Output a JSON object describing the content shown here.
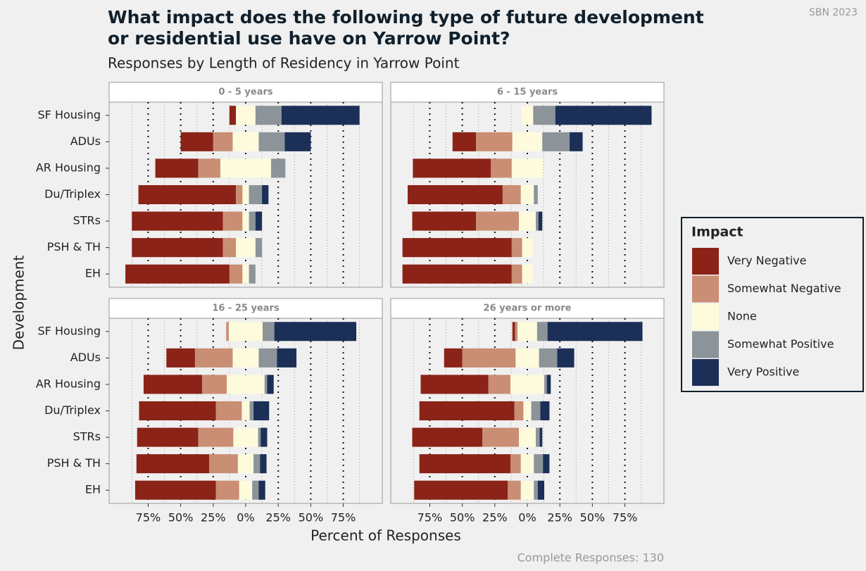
{
  "chart_data": {
    "type": "diverging_bar",
    "title_lines": [
      "What impact does the following type of future development",
      "or residential use have on Yarrow Point?"
    ],
    "subtitle": "Responses by Length of Residency in Yarrow Point",
    "source": "SBN 2023",
    "caption": "Complete Responses: 130",
    "x_label": "Percent of Responses",
    "y_label": "Development",
    "legend_title": "Impact",
    "categories": [
      "SF Housing",
      "ADUs",
      "AR Housing",
      "Du/Triplex",
      "STRs",
      "PSH & TH",
      "EH"
    ],
    "series": [
      {
        "name": "Very Negative",
        "color": "#8b2318"
      },
      {
        "name": "Somewhat Negative",
        "color": "#c98e74"
      },
      {
        "name": "None",
        "color": "#fdfbdc"
      },
      {
        "name": "Somewhat Positive",
        "color": "#8c949a"
      },
      {
        "name": "Very Positive",
        "color": "#1b2f57"
      }
    ],
    "neutral_series": "None",
    "xlim": [
      -105,
      105
    ],
    "xticks": [
      {
        "value": -75,
        "label": "75%"
      },
      {
        "value": -50,
        "label": "50%"
      },
      {
        "value": -25,
        "label": "25%"
      },
      {
        "value": 0,
        "label": "0%"
      },
      {
        "value": 25,
        "label": "25%"
      },
      {
        "value": 50,
        "label": "50%"
      },
      {
        "value": 75,
        "label": "75%"
      }
    ],
    "grid": true,
    "panels": [
      {
        "title": "0 - 5 years",
        "series": [
          {
            "values": [
              5,
              25,
              33,
              75,
              70,
              70,
              80
            ]
          },
          {
            "values": [
              0,
              15,
              17,
              5,
              15,
              10,
              10
            ]
          },
          {
            "values": [
              15,
              20,
              39,
              5,
              5,
              15,
              5
            ]
          },
          {
            "values": [
              20,
              20,
              11,
              10,
              5,
              5,
              5
            ]
          },
          {
            "values": [
              60,
              20,
              0,
              5,
              5,
              0,
              0
            ]
          }
        ]
      },
      {
        "title": "6 - 15 years",
        "series": [
          {
            "values": [
              0,
              18,
              60,
              73,
              49,
              84,
              84
            ]
          },
          {
            "values": [
              0,
              28,
              16,
              14,
              33,
              8,
              8
            ]
          },
          {
            "values": [
              9,
              23,
              24,
              10,
              13,
              8,
              8
            ]
          },
          {
            "values": [
              17,
              21,
              0,
              3,
              2,
              0,
              0
            ]
          },
          {
            "values": [
              74,
              10,
              0,
              0,
              3,
              0,
              0
            ]
          }
        ]
      },
      {
        "title": "16 - 25 years",
        "series": [
          {
            "values": [
              0,
              22,
              45,
              59,
              47,
              56,
              62
            ]
          },
          {
            "values": [
              2,
              29,
              19,
              20,
              27,
              22,
              18
            ]
          },
          {
            "values": [
              26,
              20,
              29,
              6,
              19,
              12,
              10
            ]
          },
          {
            "values": [
              9,
              14,
              2,
              3,
              2,
              5,
              5
            ]
          },
          {
            "values": [
              63,
              15,
              5,
              12,
              5,
              5,
              5
            ]
          }
        ]
      },
      {
        "title": "26 years or more",
        "series": [
          {
            "values": [
              2,
              14,
              52,
              73,
              54,
              70,
              72
            ]
          },
          {
            "values": [
              2,
              41,
              17,
              7,
              28,
              8,
              10
            ]
          },
          {
            "values": [
              15,
              18,
              26,
              6,
              13,
              10,
              10
            ]
          },
          {
            "values": [
              8,
              14,
              2,
              7,
              3,
              7,
              3
            ]
          },
          {
            "values": [
              73,
              13,
              3,
              7,
              2,
              5,
              5
            ]
          }
        ]
      }
    ]
  }
}
